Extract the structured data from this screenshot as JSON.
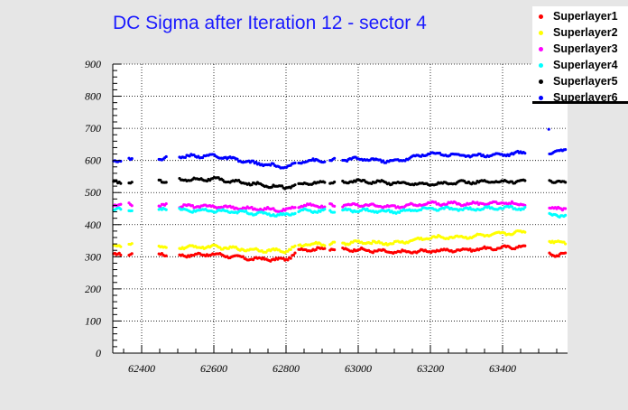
{
  "chart_data": {
    "type": "scatter",
    "title": "DC Sigma after Iteration 12 - sector 4",
    "xlabel": "",
    "ylabel": "",
    "xlim": [
      62320,
      63580
    ],
    "ylim": [
      0,
      900
    ],
    "x_ticks": [
      62400,
      62600,
      62800,
      63000,
      63200,
      63400
    ],
    "y_ticks": [
      0,
      100,
      200,
      300,
      400,
      500,
      600,
      700,
      800,
      900
    ],
    "grid": true,
    "legend_position": "top-right",
    "run_segments": [
      [
        62322,
        62345
      ],
      [
        62365,
        62375
      ],
      [
        62448,
        62470
      ],
      [
        62505,
        62825
      ],
      [
        62835,
        62910
      ],
      [
        62922,
        62935
      ],
      [
        62957,
        63105
      ],
      [
        63110,
        63465
      ],
      [
        63530,
        63575
      ]
    ],
    "series": [
      {
        "name": "Superlayer1",
        "color": "#ff0000",
        "profile": [
          [
            62320,
            305
          ],
          [
            62400,
            311
          ],
          [
            62500,
            304
          ],
          [
            62600,
            308
          ],
          [
            62700,
            294
          ],
          [
            62800,
            291
          ],
          [
            62840,
            322
          ],
          [
            62900,
            325
          ],
          [
            63000,
            322
          ],
          [
            63100,
            314
          ],
          [
            63200,
            318
          ],
          [
            63300,
            322
          ],
          [
            63400,
            328
          ],
          [
            63465,
            333
          ],
          [
            63540,
            305
          ],
          [
            63575,
            310
          ]
        ],
        "outliers": []
      },
      {
        "name": "Superlayer2",
        "color": "#ffff00",
        "profile": [
          [
            62320,
            335
          ],
          [
            62400,
            336
          ],
          [
            62500,
            330
          ],
          [
            62600,
            331
          ],
          [
            62700,
            322
          ],
          [
            62800,
            318
          ],
          [
            62850,
            340
          ],
          [
            62900,
            339
          ],
          [
            63000,
            345
          ],
          [
            63100,
            342
          ],
          [
            63200,
            360
          ],
          [
            63300,
            362
          ],
          [
            63400,
            372
          ],
          [
            63465,
            378
          ],
          [
            63540,
            348
          ],
          [
            63575,
            343
          ]
        ],
        "outliers": []
      },
      {
        "name": "Superlayer3",
        "color": "#ff00ff",
        "profile": [
          [
            62320,
            462
          ],
          [
            62400,
            463
          ],
          [
            62500,
            458
          ],
          [
            62600,
            457
          ],
          [
            62700,
            450
          ],
          [
            62800,
            446
          ],
          [
            62850,
            460
          ],
          [
            62900,
            458
          ],
          [
            63000,
            462
          ],
          [
            63100,
            455
          ],
          [
            63200,
            466
          ],
          [
            63300,
            465
          ],
          [
            63400,
            468
          ],
          [
            63465,
            462
          ],
          [
            63540,
            448
          ],
          [
            63575,
            452
          ]
        ],
        "outliers": []
      },
      {
        "name": "Superlayer4",
        "color": "#00ffff",
        "profile": [
          [
            62320,
            447
          ],
          [
            62400,
            448
          ],
          [
            62500,
            445
          ],
          [
            62600,
            443
          ],
          [
            62700,
            437
          ],
          [
            62800,
            430
          ],
          [
            62850,
            445
          ],
          [
            62900,
            442
          ],
          [
            63000,
            445
          ],
          [
            63100,
            440
          ],
          [
            63200,
            450
          ],
          [
            63300,
            448
          ],
          [
            63400,
            453
          ],
          [
            63465,
            450
          ],
          [
            63540,
            430
          ],
          [
            63575,
            428
          ]
        ],
        "outliers": []
      },
      {
        "name": "Superlayer5",
        "color": "#000000",
        "profile": [
          [
            62320,
            530
          ],
          [
            62400,
            531
          ],
          [
            62500,
            540
          ],
          [
            62600,
            542
          ],
          [
            62700,
            528
          ],
          [
            62800,
            516
          ],
          [
            62850,
            528
          ],
          [
            62900,
            530
          ],
          [
            63000,
            536
          ],
          [
            63100,
            530
          ],
          [
            63200,
            526
          ],
          [
            63300,
            532
          ],
          [
            63400,
            534
          ],
          [
            63465,
            536
          ],
          [
            63540,
            537
          ],
          [
            63575,
            530
          ]
        ],
        "outliers": []
      },
      {
        "name": "Superlayer6",
        "color": "#0000ff",
        "profile": [
          [
            62320,
            600
          ],
          [
            62400,
            602
          ],
          [
            62500,
            612
          ],
          [
            62600,
            615
          ],
          [
            62700,
            594
          ],
          [
            62800,
            578
          ],
          [
            62850,
            600
          ],
          [
            62900,
            598
          ],
          [
            63000,
            605
          ],
          [
            63100,
            597
          ],
          [
            63200,
            622
          ],
          [
            63300,
            615
          ],
          [
            63400,
            618
          ],
          [
            63465,
            625
          ],
          [
            63540,
            625
          ],
          [
            63575,
            633
          ]
        ],
        "outliers": [
          [
            63528,
            697
          ]
        ]
      }
    ]
  }
}
